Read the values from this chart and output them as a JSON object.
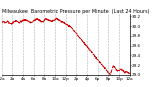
{
  "title": "Milwaukee  Barometric Pressure per Minute  (Last 24 Hours)",
  "line_color": "#cc0000",
  "bg_color": "#ffffff",
  "plot_bg_color": "#ffffff",
  "grid_color": "#b0b0b0",
  "ylim": [
    29.0,
    30.25
  ],
  "yticks": [
    29.0,
    29.2,
    29.4,
    29.6,
    29.8,
    30.0,
    30.2
  ],
  "ytick_labels": [
    "29.0",
    "29.2",
    "29.4",
    "29.6",
    "29.8",
    "30.0",
    "30.2"
  ],
  "num_points": 1440,
  "title_fontsize": 3.5,
  "tick_fontsize": 3.0,
  "line_width": 0.6,
  "pressure_data": [
    30.05,
    30.08,
    30.1,
    30.09,
    30.07,
    30.06,
    30.08,
    30.1,
    30.09,
    30.07,
    30.06,
    30.05,
    30.04,
    30.05,
    30.07,
    30.08,
    30.09,
    30.1,
    30.11,
    30.1,
    30.09,
    30.08,
    30.07,
    30.08,
    30.09,
    30.1,
    30.11,
    30.12,
    30.13,
    30.14,
    30.13,
    30.12,
    30.11,
    30.1,
    30.09,
    30.08,
    30.07,
    30.08,
    30.09,
    30.1,
    30.11,
    30.12,
    30.13,
    30.14,
    30.15,
    30.14,
    30.13,
    30.12,
    30.11,
    30.1,
    30.09,
    30.08,
    30.1,
    30.12,
    30.14,
    30.15,
    30.15,
    30.14,
    30.13,
    30.12,
    30.11,
    30.1,
    30.09,
    30.1,
    30.11,
    30.12,
    30.13,
    30.14,
    30.15,
    30.15,
    30.14,
    30.13,
    30.12,
    30.11,
    30.1,
    30.09,
    30.08,
    30.07,
    30.06,
    30.05,
    30.04,
    30.03,
    30.02,
    30.01,
    30.0,
    29.99,
    29.98,
    29.96,
    29.94,
    29.92,
    29.9,
    29.88,
    29.86,
    29.84,
    29.82,
    29.8,
    29.78,
    29.76,
    29.74,
    29.72,
    29.7,
    29.68,
    29.66,
    29.64,
    29.62,
    29.6,
    29.58,
    29.56,
    29.54,
    29.52,
    29.5,
    29.48,
    29.46,
    29.44,
    29.42,
    29.4,
    29.38,
    29.36,
    29.34,
    29.32,
    29.3,
    29.28,
    29.26,
    29.24,
    29.22,
    29.2,
    29.18,
    29.16,
    29.14,
    29.12,
    29.1,
    29.08,
    29.06,
    29.04,
    29.02,
    29.0,
    29.05,
    29.1,
    29.15,
    29.18,
    29.16,
    29.14,
    29.12,
    29.1,
    29.08,
    29.09,
    29.1,
    29.11,
    29.12,
    29.11,
    29.1,
    29.08,
    29.06,
    29.04,
    29.05,
    29.06,
    29.05,
    29.04,
    29.03,
    29.02
  ],
  "vgrid_positions": [
    0,
    120,
    240,
    360,
    480,
    600,
    720,
    840,
    960,
    1080,
    1200,
    1320,
    1439
  ],
  "xtick_positions": [
    0,
    120,
    240,
    360,
    480,
    600,
    720,
    840,
    960,
    1080,
    1200,
    1320,
    1439
  ],
  "xtick_labels": [
    "12a",
    "2a",
    "4a",
    "6a",
    "8a",
    "10a",
    "12p",
    "2p",
    "4p",
    "6p",
    "8p",
    "10p",
    "12a"
  ]
}
